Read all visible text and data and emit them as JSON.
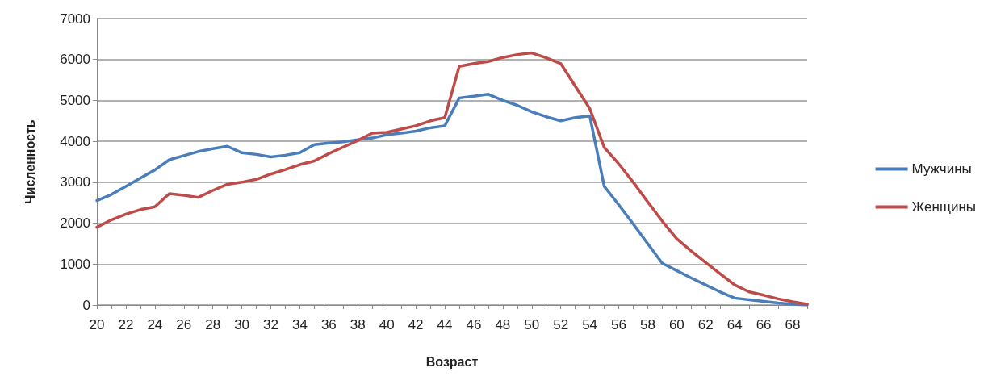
{
  "chart_data": {
    "type": "line",
    "xlabel": "Возраст",
    "ylabel": "Численность",
    "categories": [
      "20",
      null,
      "22",
      null,
      "24",
      null,
      "26",
      null,
      "28",
      null,
      "30",
      null,
      "32",
      null,
      "34",
      null,
      "36",
      null,
      "38",
      null,
      "40",
      null,
      "42",
      null,
      "44",
      null,
      "46",
      null,
      "48",
      null,
      "50",
      null,
      "52",
      null,
      "54",
      null,
      "56",
      null,
      "58",
      null,
      "60",
      null,
      "62",
      null,
      "64",
      null,
      "66",
      null,
      "68",
      null
    ],
    "series": [
      {
        "name": "Мужчины",
        "color": "#4a7ebb",
        "values": [
          2550,
          2700,
          2900,
          3100,
          3300,
          3550,
          3650,
          3750,
          3820,
          3880,
          3720,
          3680,
          3620,
          3660,
          3720,
          3920,
          3960,
          3990,
          4040,
          4080,
          4160,
          4200,
          4250,
          4330,
          4380,
          5060,
          5100,
          5150,
          5000,
          4880,
          4720,
          4600,
          4500,
          4580,
          4620,
          2900,
          2450,
          1980,
          1500,
          1020,
          840,
          660,
          490,
          320,
          170,
          130,
          90,
          50,
          20,
          0
        ]
      },
      {
        "name": "Женщины",
        "color": "#be4b48",
        "values": [
          1900,
          2080,
          2220,
          2330,
          2400,
          2720,
          2680,
          2630,
          2800,
          2950,
          3000,
          3070,
          3200,
          3310,
          3430,
          3520,
          3700,
          3860,
          4020,
          4200,
          4220,
          4300,
          4380,
          4500,
          4580,
          5830,
          5900,
          5950,
          6050,
          6120,
          6160,
          6040,
          5900,
          5350,
          4800,
          3850,
          3450,
          3000,
          2520,
          2050,
          1620,
          1320,
          1040,
          760,
          490,
          320,
          240,
          150,
          80,
          20
        ]
      }
    ],
    "ylim": [
      0,
      7000
    ],
    "yticks": [
      0,
      1000,
      2000,
      3000,
      4000,
      5000,
      6000,
      7000
    ],
    "grid": "y",
    "legend": "right",
    "marker": "none",
    "line_style": "solid"
  }
}
